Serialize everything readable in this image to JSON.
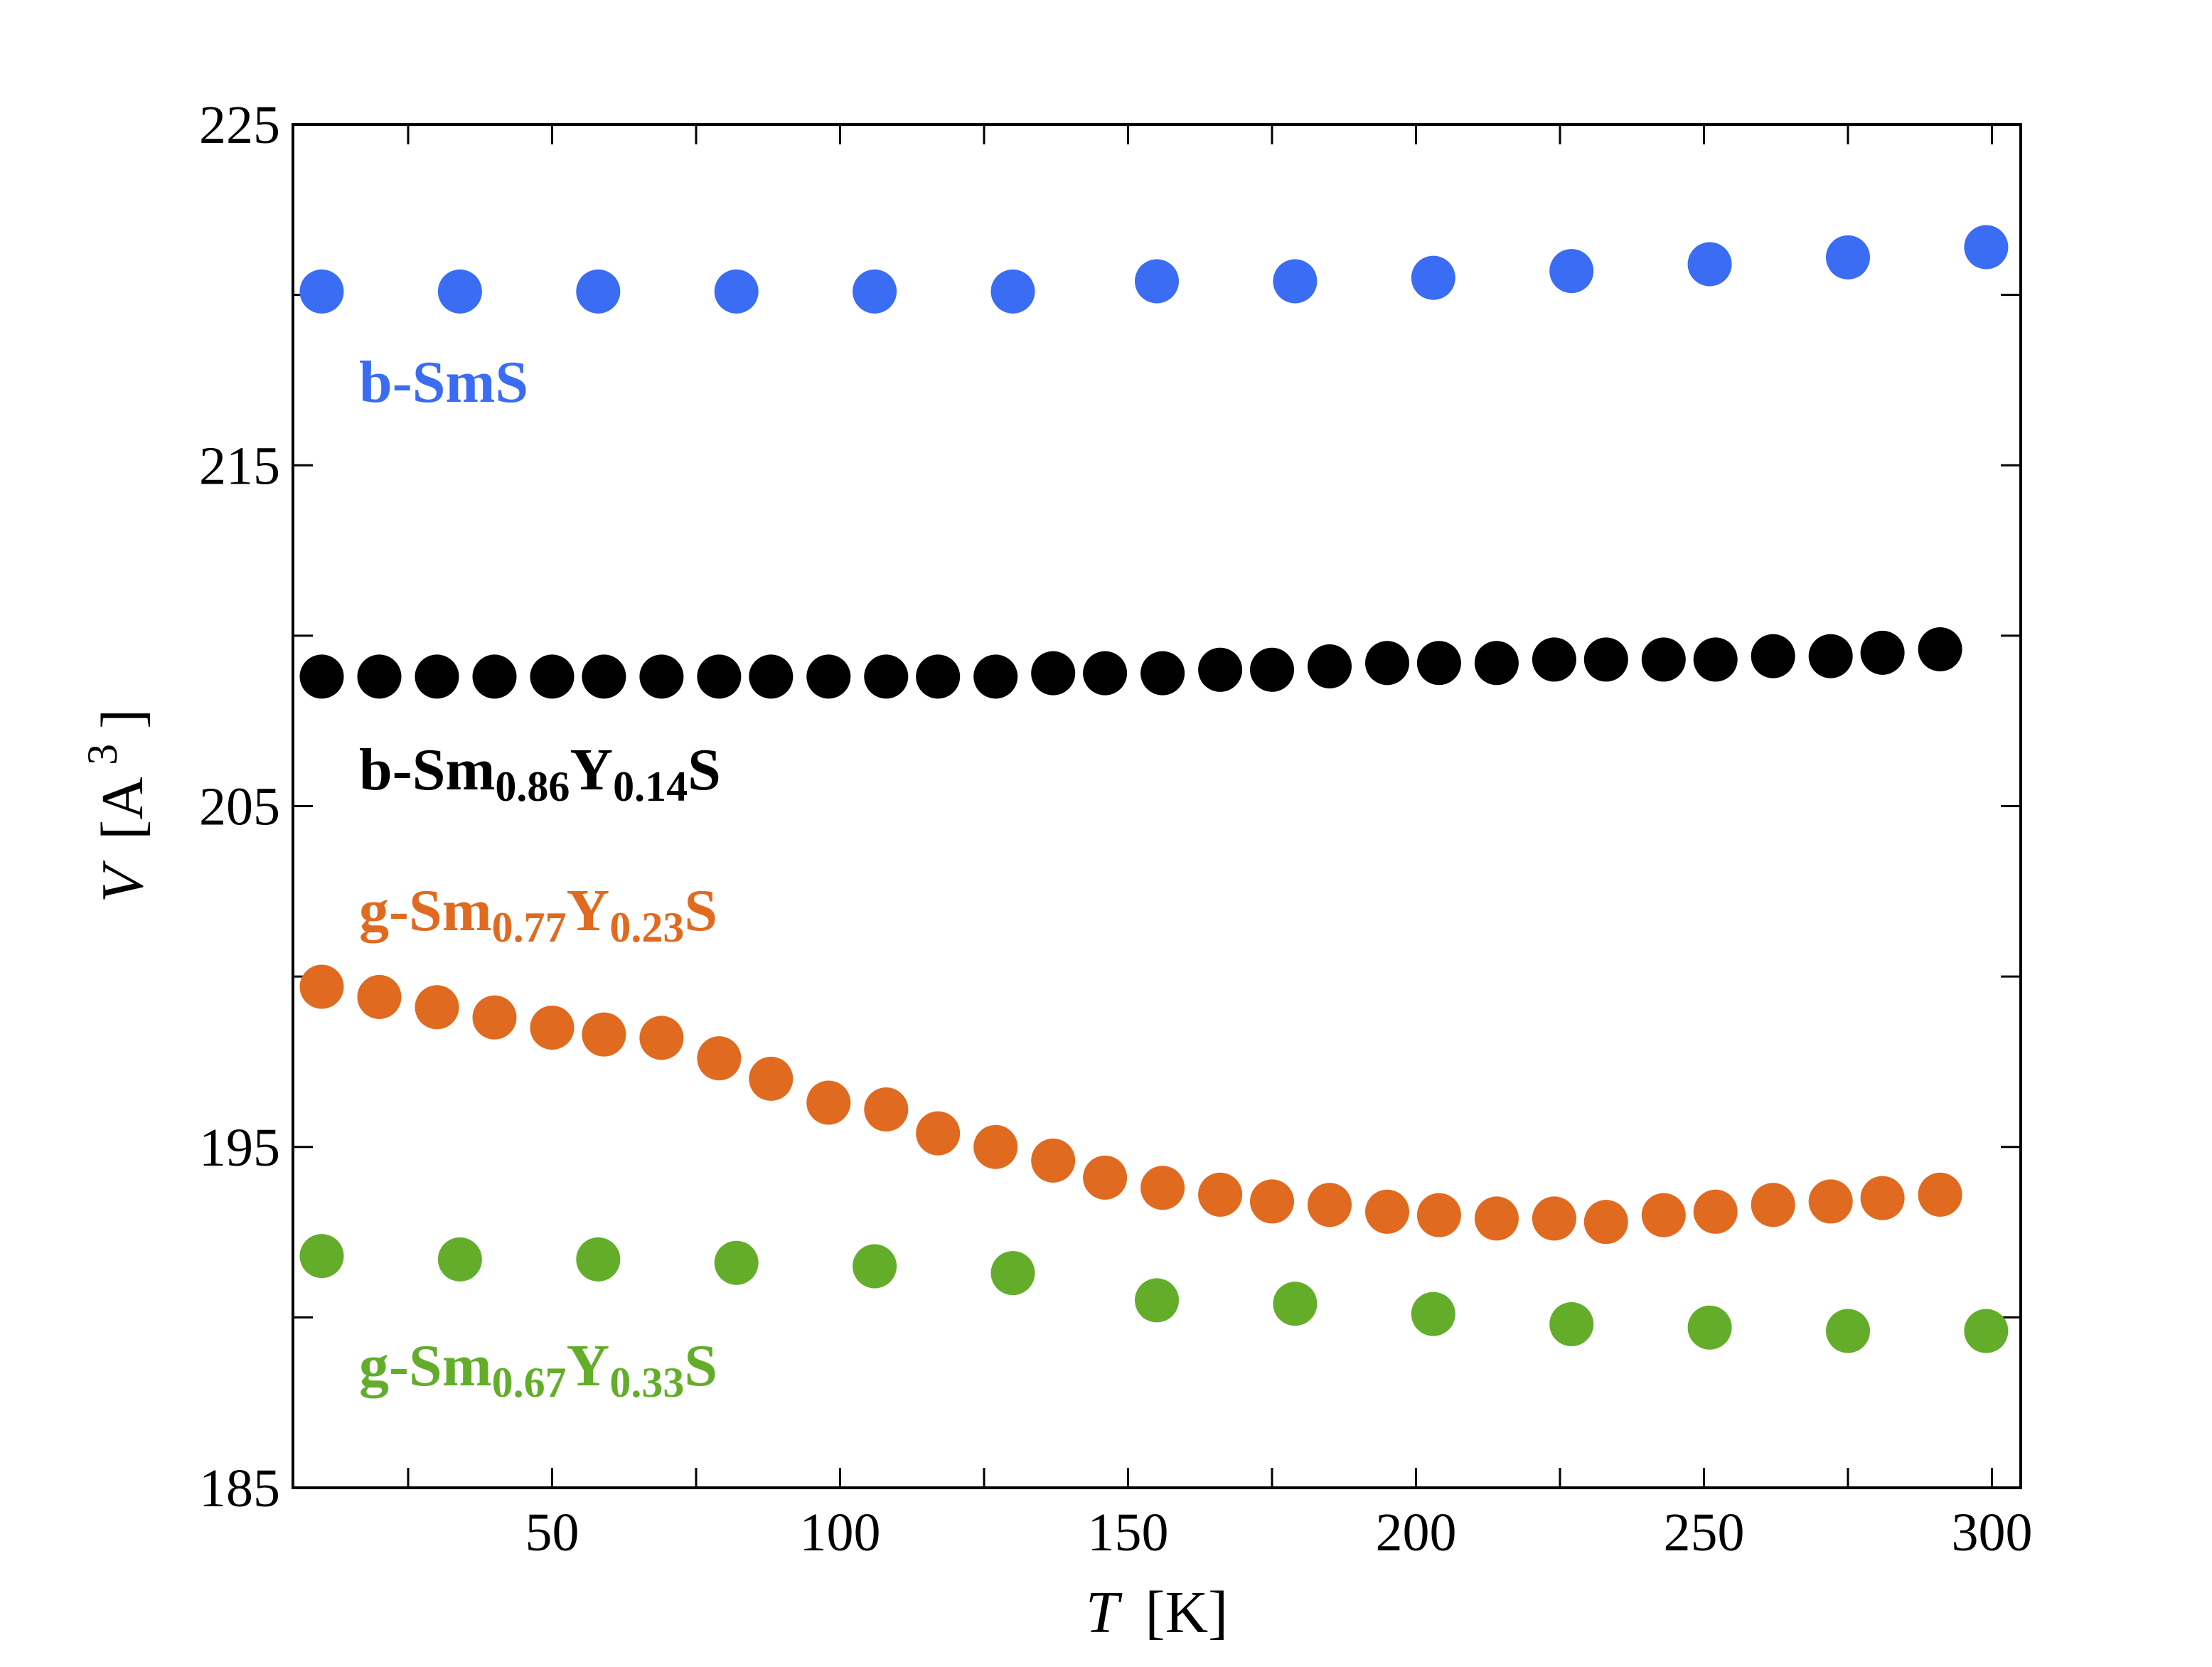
{
  "chart_data": {
    "type": "scatter",
    "title": "",
    "xlabel": {
      "var": "T",
      "unit": "[K]"
    },
    "ylabel": {
      "var": "V",
      "unit": "[A",
      "exp": "3",
      "close": "]"
    },
    "xlim": [
      5,
      305
    ],
    "ylim": [
      185,
      225
    ],
    "xticks": [
      50,
      100,
      150,
      200,
      250,
      300
    ],
    "yticks": [
      185,
      195,
      205,
      215,
      225
    ],
    "grid": false,
    "series": [
      {
        "name": "b-SmS",
        "label_parts": [
          {
            "text": "b-SmS",
            "sub": false
          }
        ],
        "color": "#3a6cf4",
        "x": [
          10,
          34,
          58,
          82,
          106,
          130,
          155,
          179,
          203,
          227,
          251,
          275,
          299
        ],
        "y": [
          220.1,
          220.1,
          220.1,
          220.1,
          220.1,
          220.1,
          220.4,
          220.4,
          220.5,
          220.7,
          220.9,
          221.1,
          221.4
        ]
      },
      {
        "name": "b-Sm0.86Y0.14S",
        "label_parts": [
          {
            "text": "b-Sm",
            "sub": false
          },
          {
            "text": "0.86",
            "sub": true
          },
          {
            "text": "Y",
            "sub": false
          },
          {
            "text": "0.14",
            "sub": true
          },
          {
            "text": "S",
            "sub": false
          }
        ],
        "color": "#000000",
        "x": [
          10,
          20,
          30,
          40,
          50,
          59,
          69,
          79,
          88,
          98,
          108,
          117,
          127,
          137,
          146,
          156,
          166,
          175,
          185,
          195,
          204,
          214,
          224,
          233,
          243,
          252,
          262,
          272,
          281,
          291
        ],
        "y": [
          208.8,
          208.8,
          208.8,
          208.8,
          208.8,
          208.8,
          208.8,
          208.8,
          208.8,
          208.8,
          208.8,
          208.8,
          208.8,
          208.9,
          208.9,
          208.9,
          209.0,
          209.0,
          209.1,
          209.2,
          209.2,
          209.2,
          209.3,
          209.3,
          209.3,
          209.3,
          209.4,
          209.4,
          209.5,
          209.6
        ]
      },
      {
        "name": "g-Sm0.77Y0.23S",
        "label_parts": [
          {
            "text": "g-Sm",
            "sub": false
          },
          {
            "text": "0.77",
            "sub": true
          },
          {
            "text": "Y",
            "sub": false
          },
          {
            "text": "0.23",
            "sub": true
          },
          {
            "text": "S",
            "sub": false
          }
        ],
        "color": "#e06a1f",
        "x": [
          10,
          20,
          30,
          40,
          50,
          59,
          69,
          79,
          88,
          98,
          108,
          117,
          127,
          137,
          146,
          156,
          166,
          175,
          185,
          195,
          204,
          214,
          224,
          233,
          243,
          252,
          262,
          272,
          281,
          291
        ],
        "y": [
          199.7,
          199.4,
          199.1,
          198.8,
          198.5,
          198.3,
          198.2,
          197.6,
          197.0,
          196.3,
          196.1,
          195.4,
          195.0,
          194.6,
          194.1,
          193.8,
          193.6,
          193.4,
          193.3,
          193.1,
          193.0,
          192.9,
          192.9,
          192.8,
          193.0,
          193.1,
          193.3,
          193.4,
          193.5,
          193.6
        ]
      },
      {
        "name": "g-Sm0.67Y0.33S",
        "label_parts": [
          {
            "text": "g-Sm",
            "sub": false
          },
          {
            "text": "0.67",
            "sub": true
          },
          {
            "text": "Y",
            "sub": false
          },
          {
            "text": "0.33",
            "sub": true
          },
          {
            "text": "S",
            "sub": false
          }
        ],
        "color": "#63ad2b",
        "x": [
          10,
          34,
          58,
          82,
          106,
          130,
          155,
          179,
          203,
          227,
          251,
          275,
          299
        ],
        "y": [
          191.8,
          191.7,
          191.7,
          191.6,
          191.5,
          191.3,
          190.5,
          190.4,
          190.1,
          189.8,
          189.7,
          189.6,
          189.6
        ]
      }
    ]
  }
}
